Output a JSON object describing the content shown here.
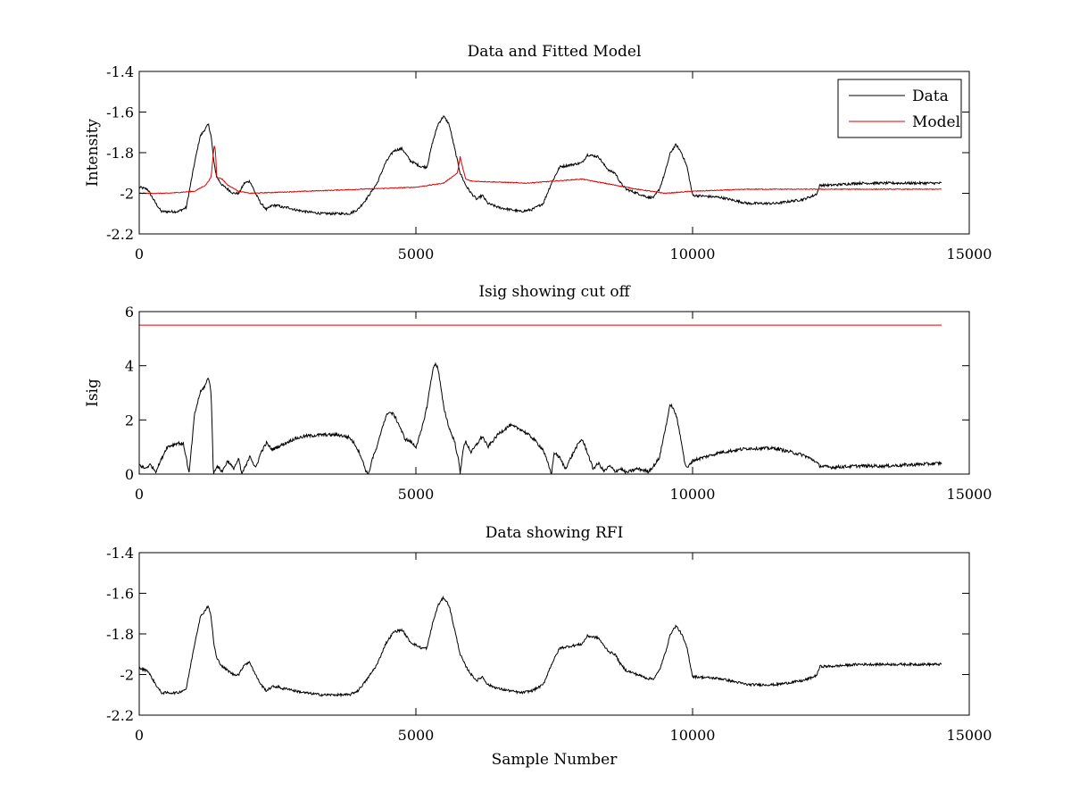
{
  "figure": {
    "background": "#ffffff"
  },
  "chart_data": [
    {
      "type": "line",
      "title": "Data and Fitted Model",
      "xlabel": "",
      "ylabel": "Intensity",
      "xlim": [
        0,
        15000
      ],
      "ylim": [
        -2.2,
        -1.4
      ],
      "xticks": [
        0,
        5000,
        10000,
        15000
      ],
      "xtick_labels": [
        "0",
        "5000",
        "10000",
        "15000"
      ],
      "yticks": [
        -1.4,
        -1.6,
        -1.8,
        -2,
        -2.2
      ],
      "ytick_labels": [
        "-1.4",
        "-1.6",
        "-1.8",
        "-2",
        "-2.2"
      ],
      "grid": false,
      "legend": {
        "placement": "top-right",
        "entries": [
          "Data",
          "Model"
        ]
      },
      "series": [
        {
          "name": "Data",
          "color": "#000000",
          "noise": 0.006,
          "x": [
            0,
            150,
            300,
            400,
            700,
            850,
            1000,
            1100,
            1200,
            1250,
            1300,
            1350,
            1400,
            1500,
            1600,
            1700,
            1800,
            1900,
            2000,
            2100,
            2200,
            2300,
            2400,
            2500,
            2600,
            2700,
            2800,
            3000,
            3300,
            3600,
            3800,
            3950,
            4100,
            4300,
            4450,
            4600,
            4750,
            4900,
            5100,
            5200,
            5300,
            5400,
            5500,
            5600,
            5700,
            5800,
            5900,
            6000,
            6100,
            6200,
            6300,
            6500,
            6700,
            6900,
            7100,
            7300,
            7450,
            7600,
            7800,
            8000,
            8100,
            8300,
            8400,
            8500,
            8600,
            8700,
            8800,
            9000,
            9200,
            9300,
            9400,
            9500,
            9600,
            9700,
            9800,
            9900,
            10000,
            10500,
            11000,
            11500,
            12000,
            12200,
            12250,
            12300,
            12500,
            13000,
            13500,
            14000,
            14500
          ],
          "y": [
            -1.97,
            -1.98,
            -2.05,
            -2.09,
            -2.09,
            -2.07,
            -1.85,
            -1.72,
            -1.68,
            -1.66,
            -1.72,
            -1.85,
            -1.92,
            -1.96,
            -1.98,
            -2.0,
            -2.0,
            -1.95,
            -1.94,
            -2.0,
            -2.05,
            -2.08,
            -2.06,
            -2.06,
            -2.07,
            -2.07,
            -2.08,
            -2.09,
            -2.1,
            -2.1,
            -2.1,
            -2.08,
            -2.03,
            -1.95,
            -1.85,
            -1.79,
            -1.78,
            -1.84,
            -1.87,
            -1.87,
            -1.75,
            -1.66,
            -1.62,
            -1.66,
            -1.78,
            -1.9,
            -1.96,
            -2.0,
            -2.03,
            -2.01,
            -2.05,
            -2.07,
            -2.08,
            -2.09,
            -2.08,
            -2.05,
            -1.95,
            -1.87,
            -1.86,
            -1.85,
            -1.81,
            -1.82,
            -1.86,
            -1.89,
            -1.9,
            -1.95,
            -1.98,
            -2.0,
            -2.02,
            -2.02,
            -1.98,
            -1.9,
            -1.8,
            -1.76,
            -1.8,
            -1.87,
            -2.01,
            -2.02,
            -2.05,
            -2.05,
            -2.03,
            -2.01,
            -2.0,
            -1.96,
            -1.96,
            -1.95,
            -1.95,
            -1.95,
            -1.95
          ]
        },
        {
          "name": "Model",
          "color": "#e00000",
          "noise": 0.002,
          "x": [
            0,
            500,
            1000,
            1200,
            1300,
            1340,
            1360,
            1380,
            1400,
            1500,
            1600,
            1800,
            2000,
            3000,
            4000,
            5000,
            5500,
            5750,
            5800,
            5850,
            5900,
            6000,
            7000,
            8000,
            9000,
            9500,
            10000,
            11000,
            13000,
            14500
          ],
          "y": [
            -2.0,
            -2.0,
            -1.99,
            -1.96,
            -1.92,
            -1.8,
            -1.76,
            -1.8,
            -1.92,
            -1.93,
            -1.96,
            -1.99,
            -2.0,
            -1.99,
            -1.98,
            -1.97,
            -1.95,
            -1.9,
            -1.82,
            -1.88,
            -1.93,
            -1.94,
            -1.95,
            -1.93,
            -1.98,
            -2.0,
            -1.99,
            -1.98,
            -1.98,
            -1.98
          ]
        }
      ]
    },
    {
      "type": "line",
      "title": "Isig showing cut off",
      "xlabel": "",
      "ylabel": "Isig",
      "xlim": [
        0,
        15000
      ],
      "ylim": [
        0,
        6
      ],
      "xticks": [
        0,
        5000,
        10000,
        15000
      ],
      "xtick_labels": [
        "0",
        "5000",
        "10000",
        "15000"
      ],
      "yticks": [
        0,
        2,
        4,
        6
      ],
      "ytick_labels": [
        "0",
        "2",
        "4",
        "6"
      ],
      "grid": false,
      "series": [
        {
          "color": "#000000",
          "noise": 0.06,
          "x": [
            0,
            100,
            200,
            300,
            500,
            700,
            800,
            850,
            900,
            1000,
            1100,
            1200,
            1250,
            1300,
            1320,
            1340,
            1400,
            1500,
            1600,
            1700,
            1800,
            1850,
            1950,
            2000,
            2100,
            2200,
            2300,
            2400,
            2600,
            2800,
            3000,
            3300,
            3600,
            3800,
            3900,
            4000,
            4100,
            4150,
            4200,
            4300,
            4400,
            4500,
            4600,
            4700,
            4800,
            4900,
            5000,
            5100,
            5200,
            5300,
            5350,
            5400,
            5500,
            5600,
            5700,
            5780,
            5800,
            5850,
            5900,
            6000,
            6100,
            6200,
            6300,
            6500,
            6700,
            6900,
            7100,
            7300,
            7400,
            7450,
            7500,
            7600,
            7700,
            7800,
            7900,
            8000,
            8100,
            8200,
            8300,
            8400,
            8500,
            8600,
            8700,
            8800,
            9000,
            9200,
            9300,
            9400,
            9500,
            9600,
            9700,
            9800,
            9850,
            9900,
            10000,
            10500,
            11000,
            11500,
            12000,
            12200,
            12300,
            12500,
            13000,
            13500,
            14000,
            14500
          ],
          "y": [
            0.35,
            0.2,
            0.35,
            0.1,
            1.0,
            1.15,
            1.1,
            0.6,
            0,
            2.2,
            3.0,
            3.3,
            3.6,
            3.0,
            1.5,
            0,
            0.3,
            0.1,
            0.5,
            0.2,
            0.55,
            0,
            0.4,
            0.7,
            0.2,
            0.8,
            1.15,
            0.9,
            1.1,
            1.3,
            1.4,
            1.45,
            1.45,
            1.35,
            1.1,
            0.7,
            0.1,
            0,
            0.5,
            1.0,
            1.8,
            2.3,
            2.2,
            1.8,
            1.3,
            1.2,
            1.0,
            1.6,
            2.5,
            3.8,
            4.1,
            3.9,
            2.5,
            1.7,
            1.2,
            0.4,
            0,
            0.9,
            1.2,
            0.8,
            1.1,
            1.4,
            1.0,
            1.5,
            1.8,
            1.65,
            1.35,
            0.9,
            0.3,
            0,
            0.8,
            0.6,
            0.2,
            0.6,
            1.0,
            1.3,
            0.8,
            0.2,
            0.4,
            0.1,
            0.3,
            0.1,
            0.2,
            0.05,
            0.2,
            0.1,
            0.3,
            0.6,
            1.6,
            2.6,
            2.2,
            1.2,
            0.5,
            0.2,
            0.5,
            0.8,
            0.95,
            0.95,
            0.7,
            0.5,
            0.3,
            0.25,
            0.3,
            0.3,
            0.35,
            0.4
          ]
        },
        {
          "color": "#e00000",
          "noise": 0,
          "x": [
            0,
            14500
          ],
          "y": [
            5.5,
            5.5
          ]
        }
      ]
    },
    {
      "type": "line",
      "title": "Data showing RFI",
      "xlabel": "Sample Number",
      "ylabel": "",
      "xlim": [
        0,
        15000
      ],
      "ylim": [
        -2.2,
        -1.4
      ],
      "xticks": [
        0,
        5000,
        10000,
        15000
      ],
      "xtick_labels": [
        "0",
        "5000",
        "10000",
        "15000"
      ],
      "yticks": [
        -1.4,
        -1.6,
        -1.8,
        -2,
        -2.2
      ],
      "ytick_labels": [
        "-1.4",
        "-1.6",
        "-1.8",
        "-2",
        "-2.2"
      ],
      "grid": false,
      "series": [
        {
          "color": "#000000",
          "noise": 0.006,
          "x": [
            0,
            150,
            300,
            400,
            700,
            850,
            1000,
            1100,
            1200,
            1250,
            1300,
            1350,
            1400,
            1500,
            1600,
            1700,
            1800,
            1900,
            2000,
            2100,
            2200,
            2300,
            2400,
            2500,
            2600,
            2700,
            2800,
            3000,
            3300,
            3600,
            3800,
            3950,
            4100,
            4300,
            4450,
            4600,
            4750,
            4900,
            5100,
            5200,
            5300,
            5400,
            5500,
            5600,
            5700,
            5800,
            5900,
            6000,
            6100,
            6200,
            6300,
            6500,
            6700,
            6900,
            7100,
            7300,
            7450,
            7600,
            7800,
            8000,
            8100,
            8300,
            8400,
            8500,
            8600,
            8700,
            8800,
            9000,
            9200,
            9300,
            9400,
            9500,
            9600,
            9700,
            9800,
            9900,
            10000,
            10500,
            11000,
            11500,
            12000,
            12200,
            12250,
            12300,
            12500,
            13000,
            13500,
            14000,
            14500
          ],
          "y": [
            -1.97,
            -1.98,
            -2.05,
            -2.09,
            -2.09,
            -2.07,
            -1.85,
            -1.72,
            -1.68,
            -1.66,
            -1.72,
            -1.85,
            -1.92,
            -1.96,
            -1.98,
            -2.0,
            -2.0,
            -1.95,
            -1.94,
            -2.0,
            -2.05,
            -2.08,
            -2.06,
            -2.06,
            -2.07,
            -2.07,
            -2.08,
            -2.09,
            -2.1,
            -2.1,
            -2.1,
            -2.08,
            -2.03,
            -1.95,
            -1.85,
            -1.79,
            -1.78,
            -1.84,
            -1.87,
            -1.87,
            -1.75,
            -1.66,
            -1.62,
            -1.66,
            -1.78,
            -1.9,
            -1.96,
            -2.0,
            -2.03,
            -2.01,
            -2.05,
            -2.07,
            -2.08,
            -2.09,
            -2.08,
            -2.05,
            -1.95,
            -1.87,
            -1.86,
            -1.85,
            -1.81,
            -1.82,
            -1.86,
            -1.89,
            -1.9,
            -1.95,
            -1.98,
            -2.0,
            -2.02,
            -2.02,
            -1.98,
            -1.9,
            -1.8,
            -1.76,
            -1.8,
            -1.87,
            -2.01,
            -2.02,
            -2.05,
            -2.05,
            -2.03,
            -2.01,
            -2.0,
            -1.96,
            -1.96,
            -1.95,
            -1.95,
            -1.95,
            -1.95
          ]
        }
      ]
    }
  ]
}
